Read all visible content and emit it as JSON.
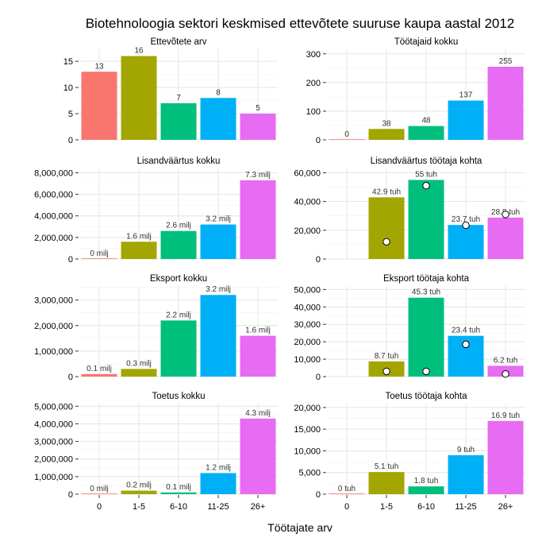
{
  "chart_data": {
    "title": "Biotehnoloogia sektori keskmised ettevõtete suuruse kaupa aastal 2012",
    "xlabel": "Töötajate arv",
    "categories": [
      "0",
      "1-5",
      "6-10",
      "11-25",
      "26+"
    ],
    "colors": [
      "#F8766D",
      "#A3A500",
      "#00BF7D",
      "#00B0F6",
      "#E76BF3"
    ],
    "panels": [
      {
        "type": "bar",
        "title": "Ettevõtete arv",
        "values": [
          13,
          16,
          7,
          8,
          5
        ],
        "labels": [
          "13",
          "16",
          "7",
          "8",
          "5"
        ],
        "yticks": [
          "0",
          "5",
          "10",
          "15"
        ],
        "ytick_values": [
          0,
          5,
          10,
          15
        ],
        "ylim": [
          0,
          17.3
        ]
      },
      {
        "type": "bar",
        "title": "Töötajaid kokku",
        "values": [
          0,
          38,
          48,
          137,
          255
        ],
        "labels": [
          "0",
          "38",
          "48",
          "137",
          "255"
        ],
        "yticks": [
          "0",
          "100",
          "200",
          "300"
        ],
        "ytick_values": [
          0,
          100,
          200,
          300
        ],
        "ylim": [
          0,
          316
        ]
      },
      {
        "type": "bar",
        "title": "Lisandväärtus kokku",
        "values": [
          0,
          1600000,
          2600000,
          3200000,
          7300000
        ],
        "labels": [
          "0 milj",
          "1.6 milj",
          "2.6 milj",
          "3.2 milj",
          "7.3 milj"
        ],
        "yticks": [
          "0",
          "2,000,000",
          "4,000,000",
          "6,000,000",
          "8,000,000"
        ],
        "ytick_values": [
          0,
          2000000,
          4000000,
          6000000,
          8000000
        ],
        "ylim": [
          0,
          8400000
        ]
      },
      {
        "type": "bar",
        "title": "Lisandväärtus töötaja kohta",
        "values": [
          null,
          42900,
          55000,
          23700,
          28800
        ],
        "labels": [
          "",
          "42.9 tuh",
          "55 tuh",
          "23.7 tuh",
          "28.8 tuh"
        ],
        "points": [
          null,
          12000,
          51000,
          23500,
          31000
        ],
        "yticks": [
          "0",
          "20,000",
          "40,000",
          "60,000"
        ],
        "ytick_values": [
          0,
          20000,
          40000,
          60000
        ],
        "ylim": [
          0,
          63000
        ]
      },
      {
        "type": "bar",
        "title": "Eksport kokku",
        "values": [
          100000,
          300000,
          2200000,
          3200000,
          1600000
        ],
        "labels": [
          "0.1 milj",
          "0.3 milj",
          "2.2 milj",
          "3.2 milj",
          "1.6 milj"
        ],
        "yticks": [
          "0",
          "1,000,000",
          "2,000,000",
          "3,000,000"
        ],
        "ytick_values": [
          0,
          1000000,
          2000000,
          3000000
        ],
        "ylim": [
          0,
          3550000
        ]
      },
      {
        "type": "bar",
        "title": "Eksport töötaja kohta",
        "values": [
          null,
          8700,
          45300,
          23400,
          6200
        ],
        "labels": [
          "",
          "8.7 tuh",
          "45.3 tuh",
          "23.4 tuh",
          "6.2 tuh"
        ],
        "points": [
          null,
          3000,
          3000,
          18500,
          1500
        ],
        "yticks": [
          "0",
          "10,000",
          "20,000",
          "30,000",
          "40,000",
          "50,000"
        ],
        "ytick_values": [
          0,
          10000,
          20000,
          30000,
          40000,
          50000
        ],
        "ylim": [
          0,
          52000
        ]
      },
      {
        "type": "bar",
        "title": "Toetus kokku",
        "values": [
          0,
          200000,
          100000,
          1200000,
          4300000
        ],
        "labels": [
          "0 milj",
          "0.2 milj",
          "0.1 milj",
          "1.2 milj",
          "4.3 milj"
        ],
        "yticks": [
          "0",
          "1,000,000",
          "2,000,000",
          "3,000,000",
          "4,000,000",
          "5,000,000"
        ],
        "ytick_values": [
          0,
          1000000,
          2000000,
          3000000,
          4000000,
          5000000
        ],
        "ylim": [
          0,
          5150000
        ]
      },
      {
        "type": "bar",
        "title": "Toetus töötaja kohta",
        "values": [
          0,
          5100,
          1800,
          9000,
          16900
        ],
        "labels": [
          "0 tuh",
          "5.1 tuh",
          "1.8 tuh",
          "9 tuh",
          "16.9 tuh"
        ],
        "yticks": [
          "0",
          "5,000",
          "10,000",
          "15,000",
          "20,000"
        ],
        "ytick_values": [
          0,
          5000,
          10000,
          15000,
          20000
        ],
        "ylim": [
          0,
          20900
        ]
      }
    ]
  }
}
